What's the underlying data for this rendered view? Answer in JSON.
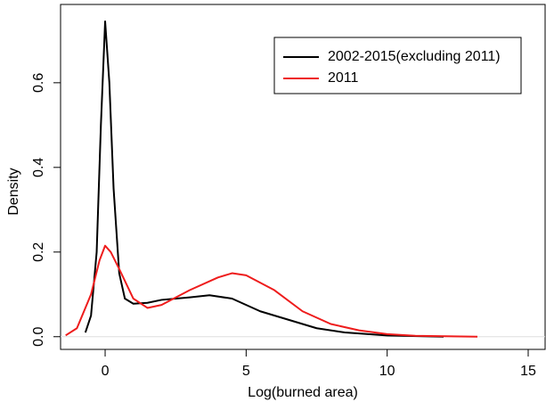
{
  "chart_data": {
    "type": "line",
    "xlabel": "Log(burned area)",
    "ylabel": "Density",
    "xlim": [
      -1.58,
      15.6
    ],
    "ylim": [
      -0.03,
      0.785
    ],
    "xticks": [
      0,
      5,
      10,
      15
    ],
    "yticks": [
      {
        "value": 0,
        "label": "0.0"
      },
      {
        "value": 0.2,
        "label": "0.2"
      },
      {
        "value": 0.4,
        "label": "0.4"
      },
      {
        "value": 0.6,
        "label": "0.6"
      }
    ],
    "legend": "top-right",
    "series": [
      {
        "name": "2002-2015(excluding 2011)",
        "color": "#000000",
        "x": [
          -0.7,
          -0.5,
          -0.3,
          -0.15,
          0,
          0.15,
          0.3,
          0.5,
          0.7,
          1,
          1.5,
          2,
          3,
          3.7,
          4.5,
          5,
          5.5,
          6.5,
          7.5,
          8.5,
          10,
          12
        ],
        "values": [
          0.01,
          0.05,
          0.2,
          0.5,
          0.745,
          0.6,
          0.35,
          0.15,
          0.09,
          0.078,
          0.08,
          0.087,
          0.093,
          0.098,
          0.09,
          0.075,
          0.06,
          0.04,
          0.02,
          0.01,
          0.003,
          0
        ]
      },
      {
        "name": "2011",
        "color": "#ee1c1c",
        "x": [
          -1.4,
          -1,
          -0.5,
          -0.2,
          0,
          0.2,
          0.5,
          1,
          1.5,
          2,
          3,
          4,
          4.5,
          5,
          6,
          7,
          8,
          9,
          10,
          11,
          13.2
        ],
        "values": [
          0.003,
          0.02,
          0.1,
          0.18,
          0.215,
          0.2,
          0.16,
          0.09,
          0.068,
          0.075,
          0.11,
          0.14,
          0.15,
          0.145,
          0.11,
          0.06,
          0.03,
          0.015,
          0.006,
          0.002,
          0
        ]
      }
    ]
  }
}
